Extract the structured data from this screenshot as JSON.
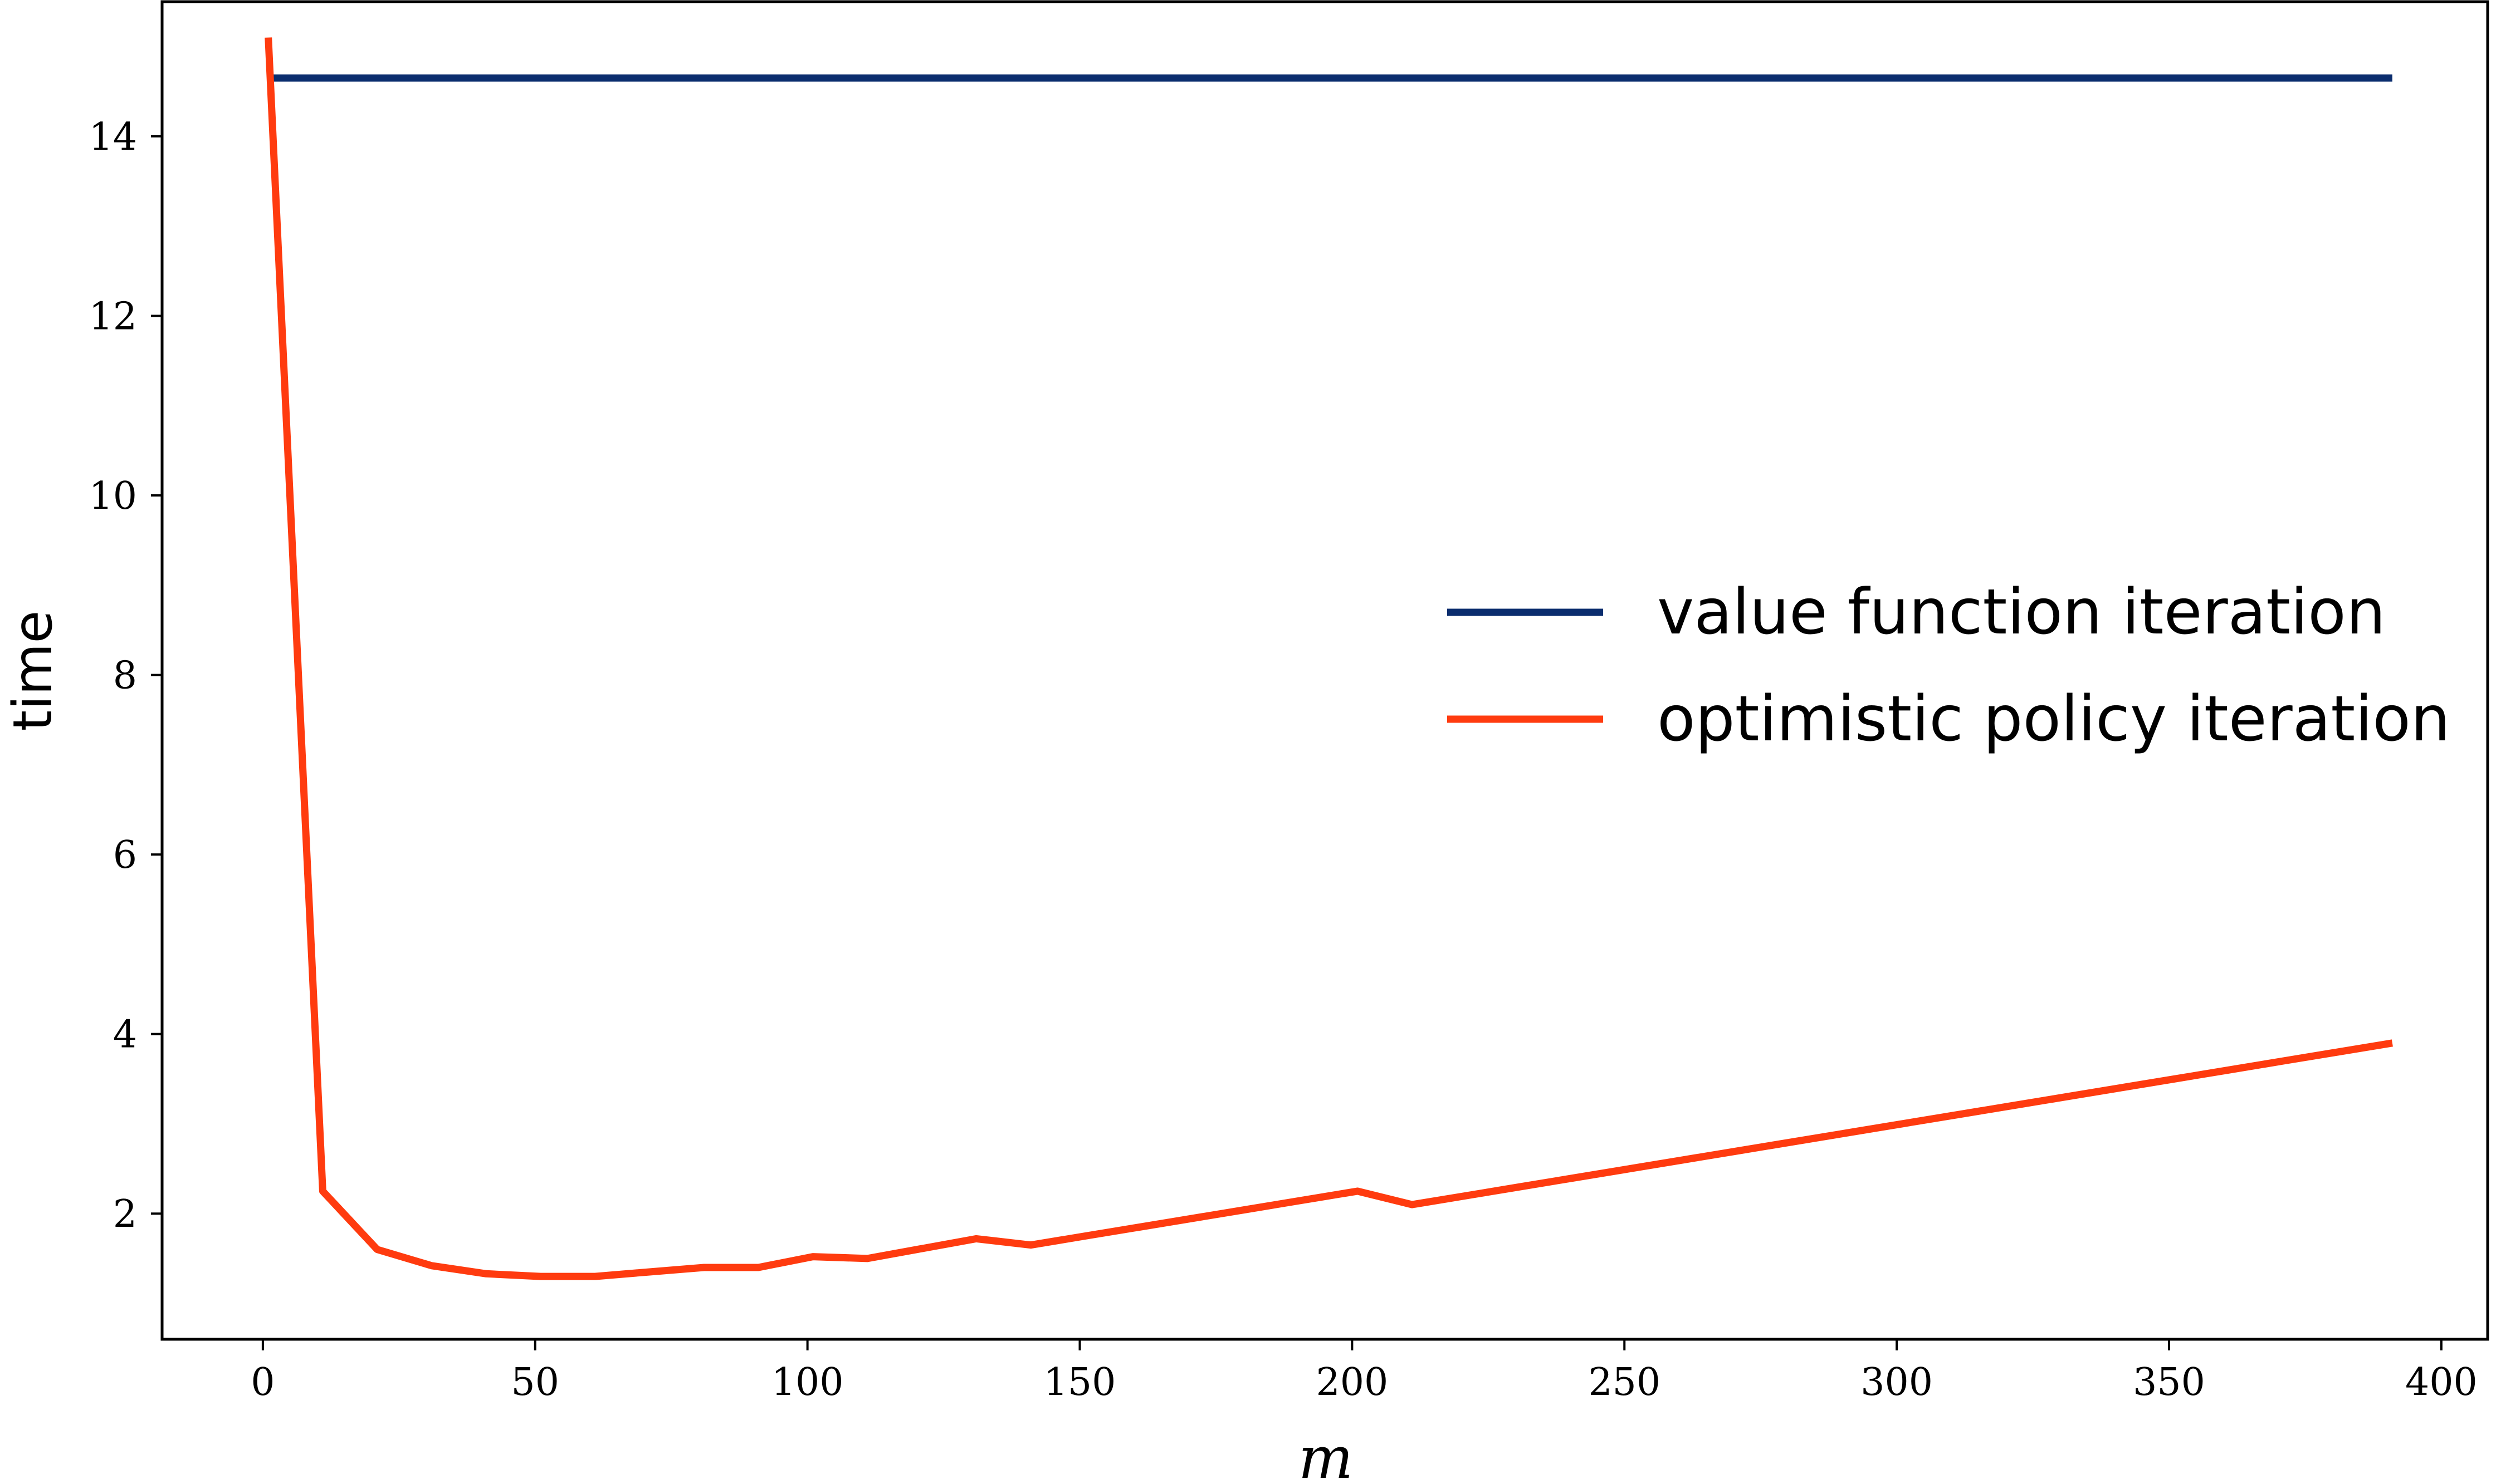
{
  "chart_data": {
    "type": "line",
    "title": "",
    "xlabel": "m",
    "ylabel": "time",
    "xlim": [
      -18.5,
      408.5
    ],
    "ylim": [
      0.6,
      15.5
    ],
    "xticks": [
      0,
      50,
      100,
      150,
      200,
      250,
      300,
      350,
      400
    ],
    "yticks": [
      2,
      4,
      6,
      8,
      10,
      12,
      14
    ],
    "grid": false,
    "legend_position": "center-right",
    "series": [
      {
        "name": "value function iteration",
        "color": "#0b2d6e",
        "x": [
          1,
          391
        ],
        "y": [
          14.65,
          14.65
        ]
      },
      {
        "name": "optimistic policy iteration",
        "color": "#ff3b0f",
        "x": [
          1,
          11,
          21,
          31,
          41,
          51,
          61,
          71,
          81,
          91,
          101,
          111,
          121,
          131,
          141,
          151,
          161,
          171,
          181,
          191,
          201,
          211,
          221,
          231,
          241,
          251,
          261,
          271,
          281,
          291,
          301,
          311,
          321,
          331,
          341,
          351,
          361,
          371,
          381,
          391
        ],
        "y": [
          15.1,
          2.25,
          1.6,
          1.42,
          1.33,
          1.3,
          1.3,
          1.35,
          1.4,
          1.4,
          1.52,
          1.5,
          1.61,
          1.72,
          1.65,
          1.75,
          1.85,
          1.95,
          2.05,
          2.15,
          2.25,
          2.1,
          2.2,
          2.3,
          2.4,
          2.5,
          2.6,
          2.7,
          2.8,
          2.9,
          3.0,
          3.1,
          3.2,
          3.3,
          3.4,
          3.5,
          3.6,
          3.7,
          3.8,
          3.9
        ]
      }
    ]
  }
}
